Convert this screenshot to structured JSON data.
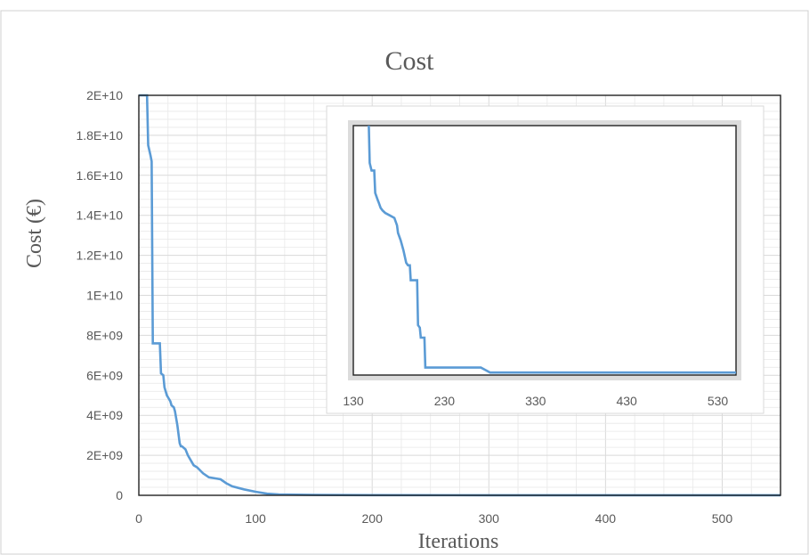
{
  "chart_data": [
    {
      "type": "line",
      "title": "Cost",
      "xlabel": "Iterations",
      "ylabel": "Cost (€)",
      "xlim": [
        0,
        550
      ],
      "ylim": [
        0,
        20000000000
      ],
      "x_ticks": [
        "0",
        "100",
        "200",
        "300",
        "400",
        "500"
      ],
      "y_ticks": [
        "0",
        "2E+09",
        "4E+09",
        "6E+09",
        "8E+09",
        "1E+10",
        "1.2E+10",
        "1.4E+10",
        "1.6E+10",
        "1.8E+10",
        "2E+10"
      ],
      "grid": true,
      "series": [
        {
          "x": [
            0,
            7,
            8,
            10,
            11,
            12,
            18,
            19,
            21,
            22,
            24,
            25,
            27,
            28,
            30,
            31,
            33,
            35,
            36,
            37,
            40,
            42,
            45,
            47,
            50,
            55,
            60,
            65,
            70,
            75,
            80,
            90,
            100,
            110,
            120,
            150,
            200,
            300,
            400,
            500,
            550
          ],
          "y": [
            20000000000,
            20000000000,
            17500000000,
            17000000000,
            16700000000,
            7600000000,
            7600000000,
            6100000000,
            6000000000,
            5400000000,
            5000000000,
            4900000000,
            4700000000,
            4500000000,
            4400000000,
            4200000000,
            3500000000,
            2600000000,
            2450000000,
            2450000000,
            2300000000,
            2000000000,
            1700000000,
            1500000000,
            1400000000,
            1100000000,
            900000000,
            850000000,
            800000000,
            600000000,
            450000000,
            300000000,
            180000000,
            80000000,
            40000000,
            20000000,
            10000000,
            5000000,
            5000000,
            5000000,
            5000000
          ]
        }
      ]
    },
    {
      "type": "line",
      "title": "",
      "xlim": [
        130,
        550
      ],
      "x_ticks": [
        "130",
        "230",
        "330",
        "430",
        "530"
      ],
      "grid": false,
      "series": [
        {
          "x": [
            147,
            148,
            150,
            153,
            154,
            157,
            158,
            160,
            162,
            165,
            170,
            175,
            178,
            179,
            182,
            185,
            188,
            190,
            192,
            193,
            200,
            201,
            203,
            204,
            208,
            209,
            270,
            275,
            280,
            300,
            400,
            500,
            550
          ],
          "y": [
            100,
            85,
            82,
            82,
            73,
            70,
            69,
            67,
            66,
            65,
            64,
            63,
            60,
            57,
            54,
            50,
            45,
            44,
            44,
            38,
            38,
            20,
            19,
            15,
            15,
            3,
            3,
            2,
            1,
            1,
            1,
            1,
            1
          ]
        }
      ]
    }
  ]
}
